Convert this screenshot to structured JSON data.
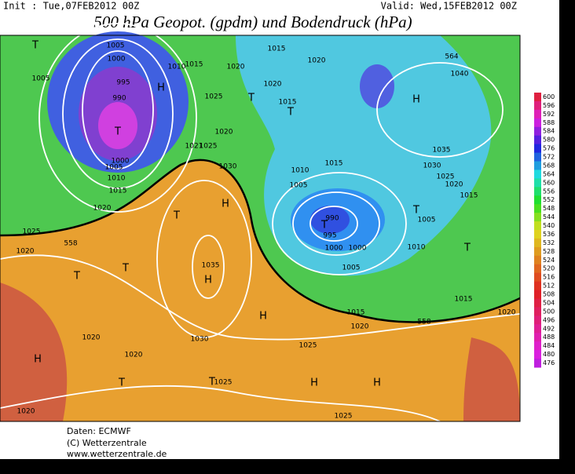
{
  "header": {
    "init": "Init : Tue,07FEB2012 00Z",
    "valid": "Valid: Wed,15FEB2012 00Z",
    "title": "500 hPa Geopot. (gpdm) und Bodendruck (hPa)"
  },
  "colorbar": {
    "labels": [
      600,
      596,
      592,
      588,
      584,
      580,
      576,
      572,
      568,
      564,
      560,
      556,
      552,
      548,
      544,
      540,
      536,
      532,
      528,
      524,
      520,
      516,
      512,
      508,
      504,
      500,
      496,
      492,
      488,
      484,
      480,
      476
    ]
  },
  "map": {
    "labels": [
      "T",
      "1005",
      "1000",
      "1005",
      "995",
      "990",
      "T",
      "H",
      "1000",
      "1005",
      "1010",
      "1015",
      "1020",
      "1025",
      "1020",
      "1010",
      "1015",
      "1020",
      "1025",
      "1020",
      "1021",
      "1025",
      "1030",
      "H",
      "T",
      "1035",
      "H",
      "T",
      "T",
      "1015",
      "1020",
      "1020",
      "1015",
      "T",
      "T",
      "1010",
      "1015",
      "1005",
      "990",
      "T",
      "995",
      "1000",
      "1000",
      "1005",
      "T",
      "1005",
      "1010",
      "T",
      "H",
      "1040",
      "1035",
      "1030",
      "1025",
      "1020",
      "1015",
      "1015",
      "1020",
      "H",
      "1015",
      "1020",
      "1020",
      "1030",
      "1020",
      "H",
      "T",
      "T",
      "1025",
      "1025",
      "H",
      "H",
      "1025",
      "1020",
      "564",
      "558",
      "558"
    ]
  },
  "footer": {
    "lines": [
      "Daten: ECMWF",
      "(C) Wetterzentrale",
      "www.wetterzentrale.de"
    ]
  }
}
